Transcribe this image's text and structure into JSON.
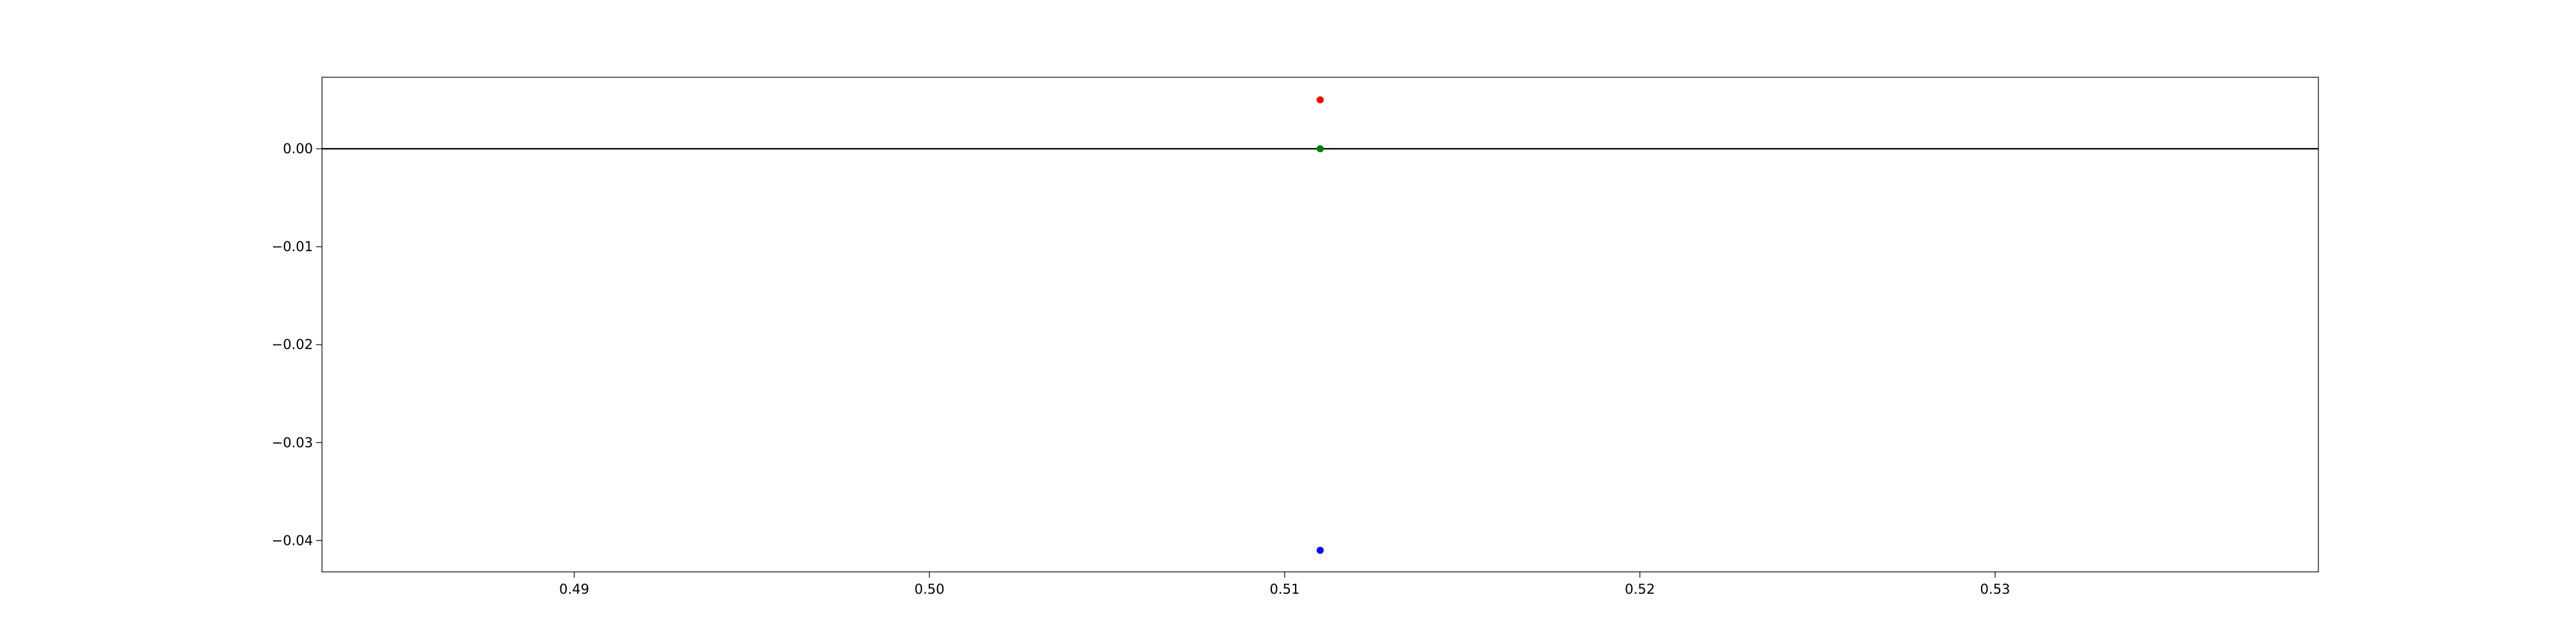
{
  "chart_data": {
    "type": "scatter",
    "title": "",
    "xlabel": "",
    "ylabel": "",
    "xlim": [
      0.4829,
      0.5391
    ],
    "ylim": [
      -0.0432,
      0.0073
    ],
    "x_ticks": [
      0.49,
      0.5,
      0.51,
      0.52,
      0.53
    ],
    "x_tick_labels": [
      "0.49",
      "0.50",
      "0.51",
      "0.52",
      "0.53"
    ],
    "y_ticks": [
      0.0,
      -0.01,
      -0.02,
      -0.03,
      -0.04
    ],
    "y_tick_labels": [
      "0.00",
      "−0.01",
      "−0.02",
      "−0.03",
      "−0.04"
    ],
    "grid": false,
    "legend": "none",
    "reference_lines": [
      {
        "axis": "y",
        "value": 0.0,
        "color": "#000000"
      }
    ],
    "points": [
      {
        "x": 0.511,
        "y": 0.005,
        "color": "#ff0000"
      },
      {
        "x": 0.511,
        "y": 0.0,
        "color": "#008000"
      },
      {
        "x": 0.511,
        "y": -0.041,
        "color": "#0000ff"
      }
    ]
  }
}
